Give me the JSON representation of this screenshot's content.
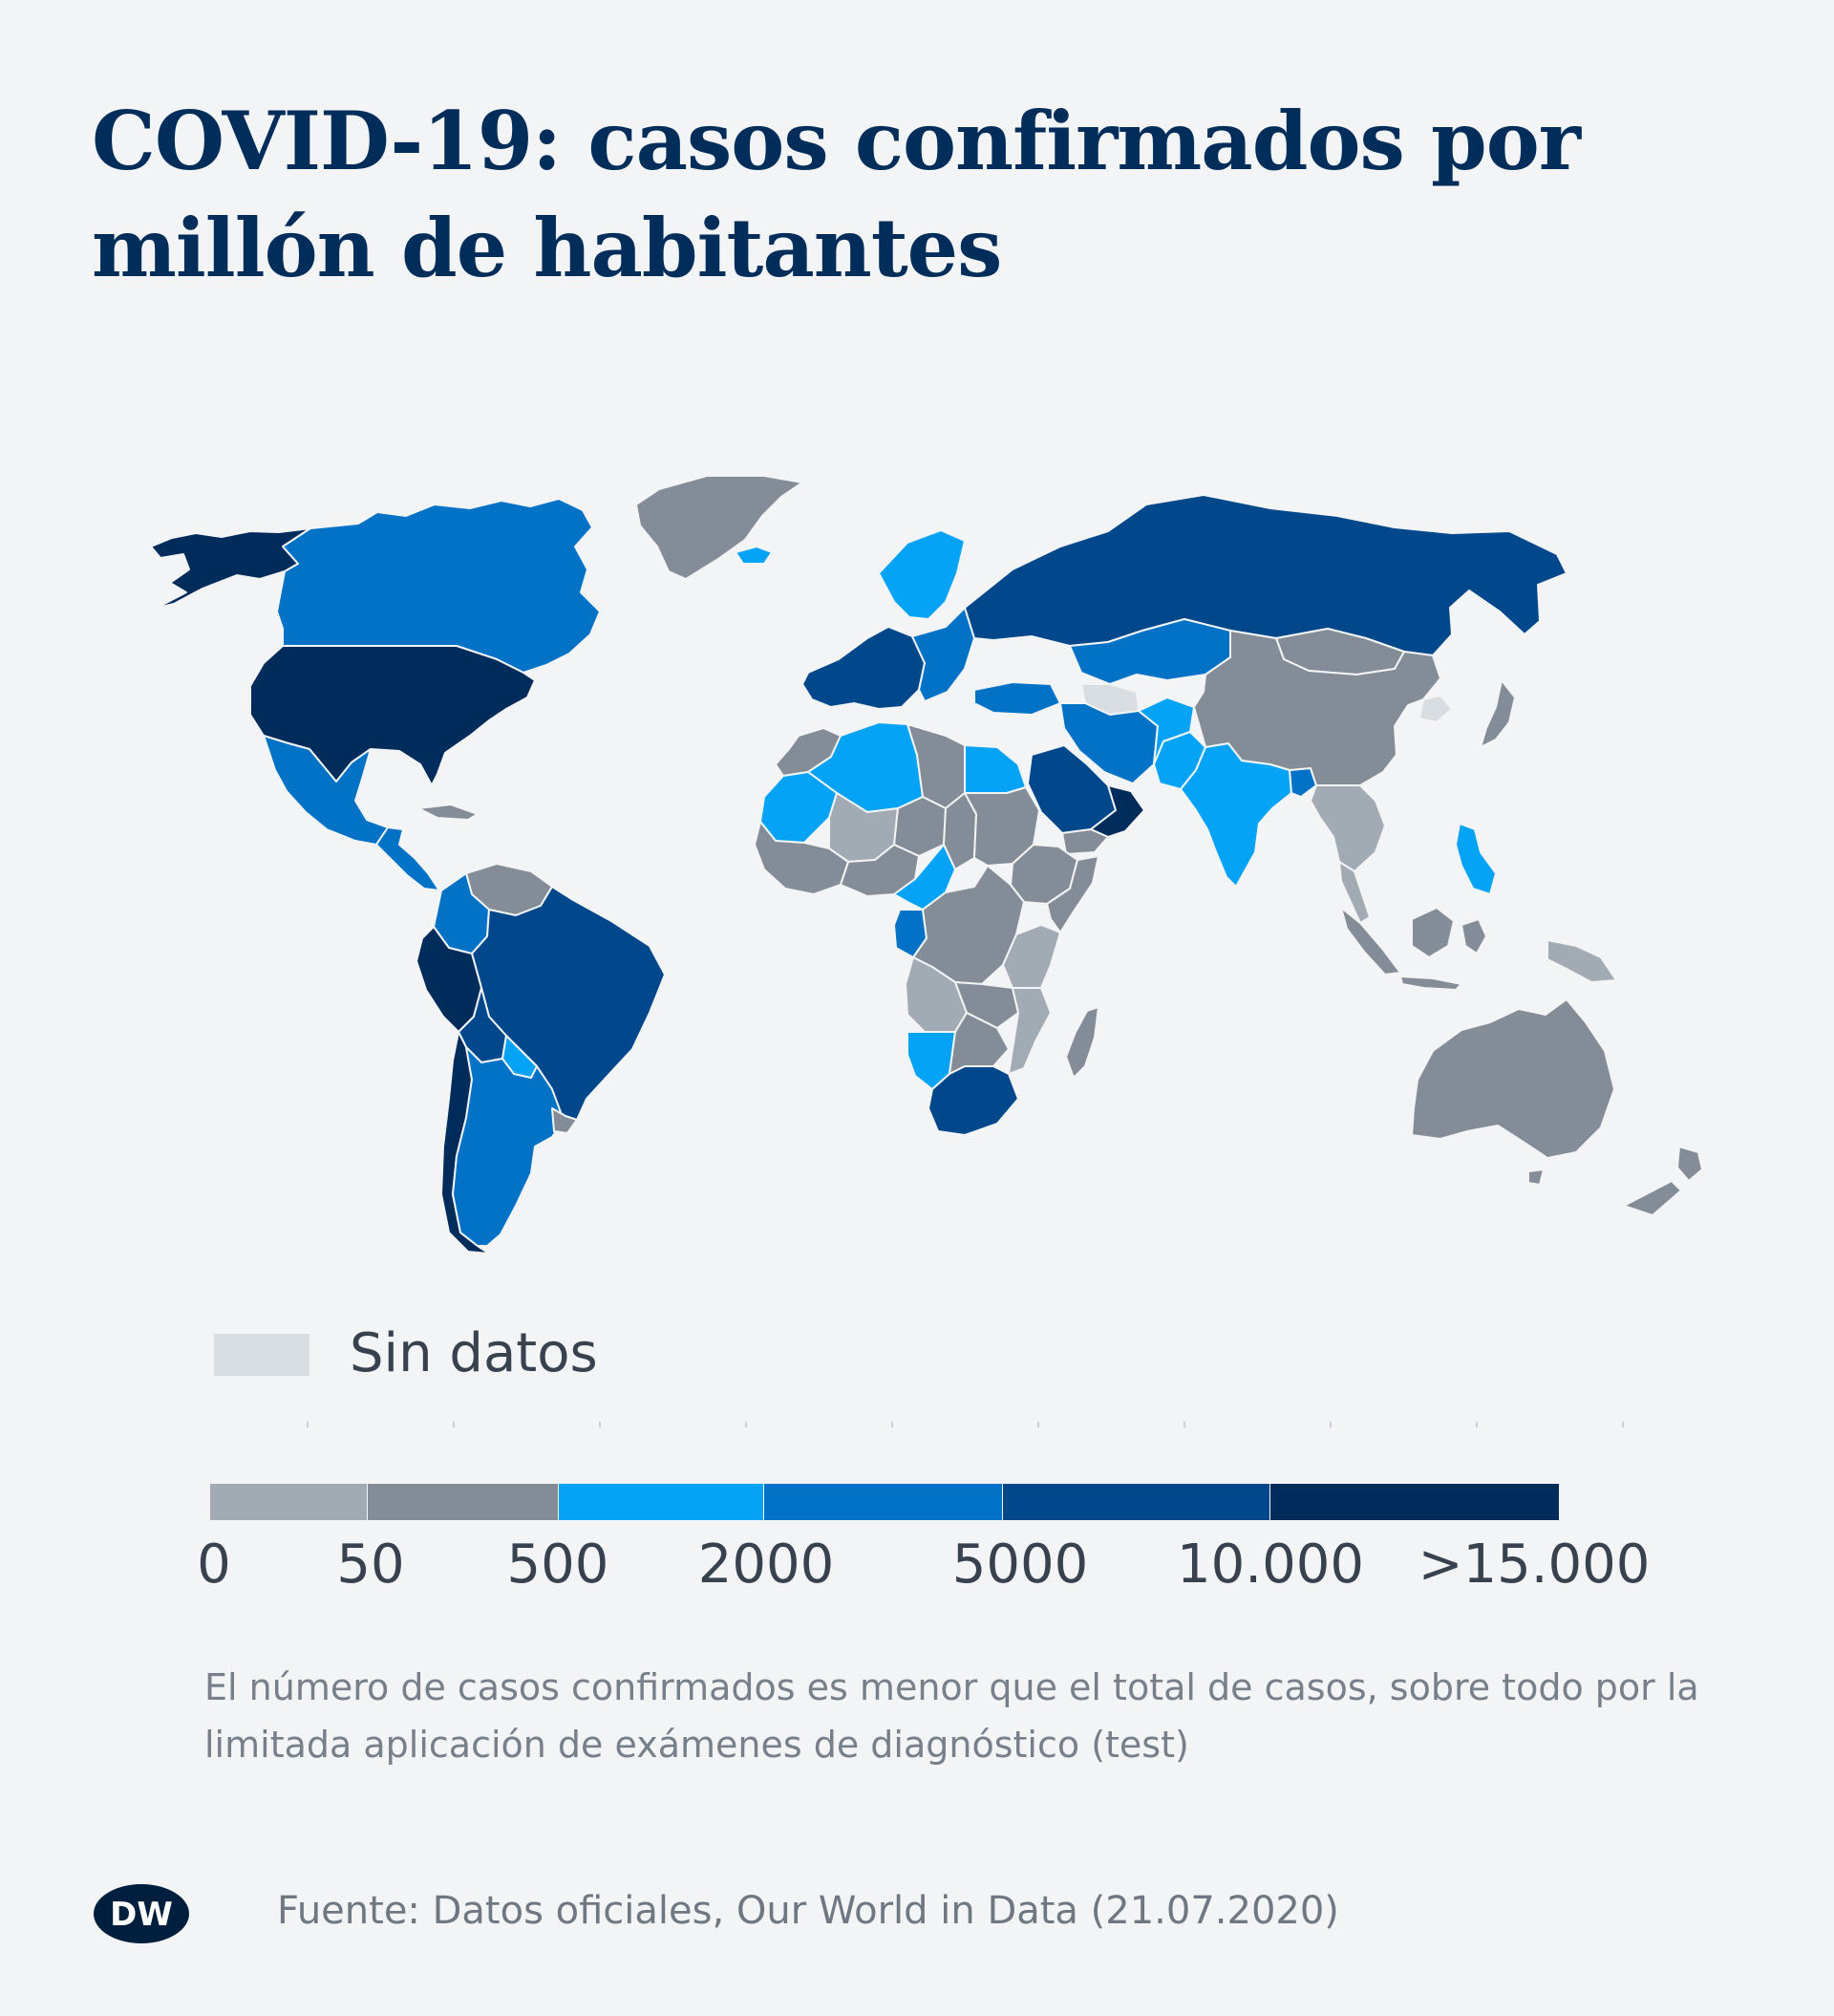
{
  "title": "COVID-19: casos confirmados por millón de habitantes",
  "nodata_label": "Sin datos",
  "legend": {
    "ticks": [
      "0",
      "50",
      "500",
      "2000",
      "5000",
      "10.000",
      ">15.000"
    ],
    "bins": [
      {
        "from": 0,
        "to": 50,
        "color": "#a2abb4"
      },
      {
        "from": 50,
        "to": 500,
        "color": "#848d97"
      },
      {
        "from": 500,
        "to": 2000,
        "color": "#05a3f5"
      },
      {
        "from": 2000,
        "to": 5000,
        "color": "#0272c6"
      },
      {
        "from": 5000,
        "to": 10000,
        "color": "#00478b"
      },
      {
        "from": 10000,
        "to": 15000,
        "color": "#002c5c"
      }
    ],
    "nodata_color": "#d8dde2"
  },
  "note": "El número de casos confirmados es menor que el total de casos, sobre todo por la limitada aplicación de exámenes de diagnóstico (test)",
  "source": "Fuente: Datos oficiales, Our World in Data (21.07.2020)",
  "logo_text": "DW",
  "map": {
    "regions": [
      {
        "name": "Alaska",
        "color": "#002c5c"
      },
      {
        "name": "Canadá",
        "color": "#0272c6"
      },
      {
        "name": "Estados Unidos",
        "color": "#002c5c"
      },
      {
        "name": "Groenlandia",
        "color": "#848d97"
      },
      {
        "name": "México",
        "color": "#0272c6"
      },
      {
        "name": "Centroamérica",
        "color": "#0272c6"
      },
      {
        "name": "Cuba",
        "color": "#848d97"
      },
      {
        "name": "Venezuela",
        "color": "#848d97"
      },
      {
        "name": "Colombia",
        "color": "#0272c6"
      },
      {
        "name": "Brasil",
        "color": "#00478b"
      },
      {
        "name": "Perú",
        "color": "#002c5c"
      },
      {
        "name": "Chile",
        "color": "#002c5c"
      },
      {
        "name": "Bolivia",
        "color": "#00478b"
      },
      {
        "name": "Argentina",
        "color": "#0272c6"
      },
      {
        "name": "Paraguay",
        "color": "#05a3f5"
      },
      {
        "name": "Uruguay",
        "color": "#848d97"
      },
      {
        "name": "Islandia",
        "color": "#05a3f5"
      },
      {
        "name": "Europa occidental",
        "color": "#00478b"
      },
      {
        "name": "Europa oriental",
        "color": "#0272c6"
      },
      {
        "name": "Escandinavia",
        "color": "#05a3f5"
      },
      {
        "name": "Rusia",
        "color": "#00478b"
      },
      {
        "name": "Kazajistán",
        "color": "#0272c6"
      },
      {
        "name": "Turquía",
        "color": "#0272c6"
      },
      {
        "name": "Irán",
        "color": "#0272c6"
      },
      {
        "name": "Arabia Saudita",
        "color": "#00478b"
      },
      {
        "name": "Omán",
        "color": "#002c5c"
      },
      {
        "name": "Yemen",
        "color": "#848d97"
      },
      {
        "name": "Turkmenistán",
        "color": "#d8dde2"
      },
      {
        "name": "Afganistán",
        "color": "#05a3f5"
      },
      {
        "name": "Pakistán",
        "color": "#05a3f5"
      },
      {
        "name": "India",
        "color": "#05a3f5"
      },
      {
        "name": "Bangladés",
        "color": "#0272c6"
      },
      {
        "name": "China",
        "color": "#848d97"
      },
      {
        "name": "Mongolia",
        "color": "#848d97"
      },
      {
        "name": "Corea del Norte",
        "color": "#d8dde2"
      },
      {
        "name": "Japón",
        "color": "#848d97"
      },
      {
        "name": "Sudeste asiático",
        "color": "#a2abb4"
      },
      {
        "name": "Filipinas",
        "color": "#05a3f5"
      },
      {
        "name": "Indonesia",
        "color": "#848d97"
      },
      {
        "name": "Papúa Nueva Guinea",
        "color": "#a2abb4"
      },
      {
        "name": "Australia",
        "color": "#848d97"
      },
      {
        "name": "Nueva Zelanda",
        "color": "#848d97"
      },
      {
        "name": "Argelia",
        "color": "#05a3f5"
      },
      {
        "name": "Marruecos",
        "color": "#848d97"
      },
      {
        "name": "Mauritania",
        "color": "#05a3f5"
      },
      {
        "name": "Malí",
        "color": "#a2abb4"
      },
      {
        "name": "Níger",
        "color": "#848d97"
      },
      {
        "name": "Libia",
        "color": "#848d97"
      },
      {
        "name": "Egipto",
        "color": "#05a3f5"
      },
      {
        "name": "Chad",
        "color": "#848d97"
      },
      {
        "name": "Sudán",
        "color": "#848d97"
      },
      {
        "name": "Etiopía",
        "color": "#848d97"
      },
      {
        "name": "Somalia",
        "color": "#848d97"
      },
      {
        "name": "Nigeria",
        "color": "#848d97"
      },
      {
        "name": "Camerún",
        "color": "#05a3f5"
      },
      {
        "name": "Gabón",
        "color": "#0272c6"
      },
      {
        "name": "Congo (RDC)",
        "color": "#848d97"
      },
      {
        "name": "Tanzania",
        "color": "#a2abb4"
      },
      {
        "name": "Angola",
        "color": "#a2abb4"
      },
      {
        "name": "Zambia",
        "color": "#848d97"
      },
      {
        "name": "Namibia",
        "color": "#05a3f5"
      },
      {
        "name": "Botsuana",
        "color": "#848d97"
      },
      {
        "name": "Mozambique",
        "color": "#a2abb4"
      },
      {
        "name": "Sudáfrica",
        "color": "#00478b"
      },
      {
        "name": "Madagascar",
        "color": "#848d97"
      }
    ]
  }
}
